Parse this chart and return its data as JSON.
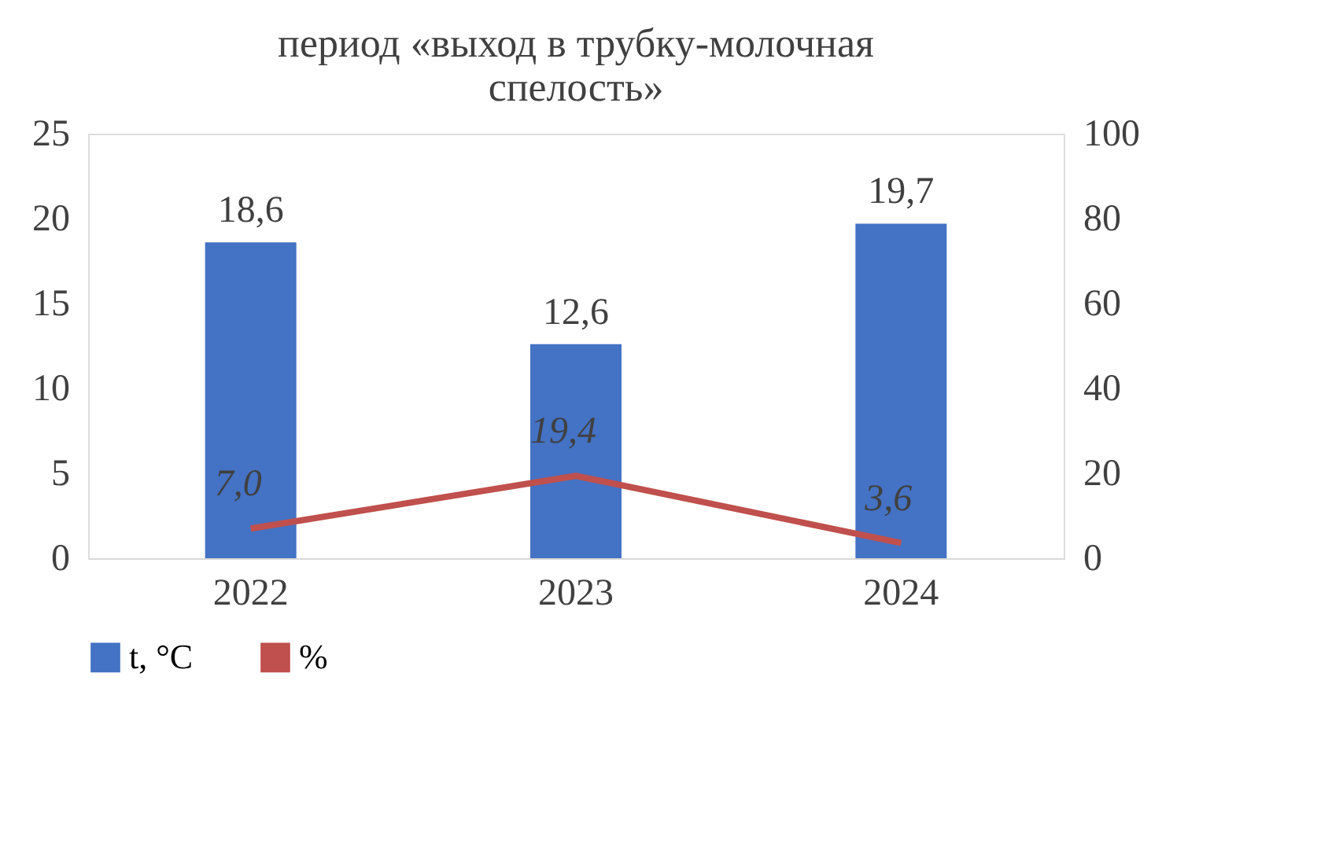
{
  "chart_data": {
    "type": "bar",
    "title": "период «выход в трубку-молочная спелость»",
    "categories": [
      "2022",
      "2023",
      "2024"
    ],
    "series": [
      {
        "name": "t, °C",
        "color": "#4472c4",
        "values": [
          18.6,
          12.6,
          19.7
        ],
        "value_labels": [
          "18,6",
          "12,6",
          "19,7"
        ]
      },
      {
        "name": "%",
        "type": "line",
        "axis": "y2",
        "color": "#c0504d",
        "values": [
          7.0,
          19.4,
          3.6
        ],
        "value_labels": [
          "7,0",
          "19,4",
          "3,6"
        ]
      }
    ],
    "ylim": [
      0,
      25
    ],
    "yticks": [
      0,
      5,
      10,
      15,
      20,
      25
    ],
    "y2lim": [
      0,
      100
    ],
    "y2ticks": [
      0,
      20,
      40,
      60,
      80,
      100
    ],
    "grid": false,
    "legend": "bottom"
  }
}
